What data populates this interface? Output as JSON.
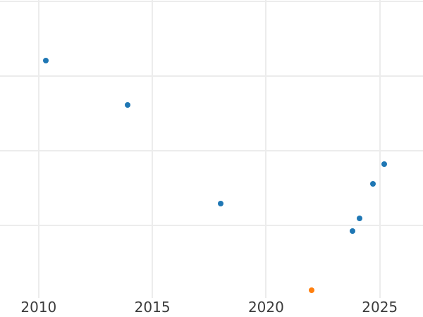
{
  "chart": {
    "background_color": "#ffffff",
    "grid_color": "#ececec",
    "tick_label_color": "#3c3c3c",
    "tick_font_size_px": 20
  },
  "chart_data": {
    "type": "scatter",
    "title": "",
    "xlabel": "",
    "ylabel": "",
    "grid": true,
    "legend": false,
    "x_ticks": [
      2010,
      2015,
      2020,
      2025
    ],
    "x_tick_labels": [
      "2010",
      "2015",
      "2020",
      "2025"
    ],
    "y_ticks": [
      1,
      2,
      3,
      4
    ],
    "y_tick_labels": [],
    "y_axis_note": "y-axis tick labels are cropped out of the visible image; y values are estimated in gridline units (1 unit = one horizontal gridline spacing)",
    "xlim": [
      2008.3,
      2026.9
    ],
    "ylim": [
      0.03,
      4.02
    ],
    "series": [
      {
        "name": "blue-series",
        "color": "#1f77b4",
        "marker": "circle",
        "marker_size_px": 8,
        "points": [
          {
            "x": 2010.3,
            "y": 3.21
          },
          {
            "x": 2013.9,
            "y": 2.61
          },
          {
            "x": 2018.0,
            "y": 1.29
          },
          {
            "x": 2023.8,
            "y": 0.93
          },
          {
            "x": 2024.1,
            "y": 1.1
          },
          {
            "x": 2024.7,
            "y": 1.56
          },
          {
            "x": 2025.2,
            "y": 1.82
          }
        ]
      },
      {
        "name": "orange-series",
        "color": "#ff7f0e",
        "marker": "circle",
        "marker_size_px": 8,
        "points": [
          {
            "x": 2022.0,
            "y": 0.13
          }
        ]
      }
    ]
  }
}
